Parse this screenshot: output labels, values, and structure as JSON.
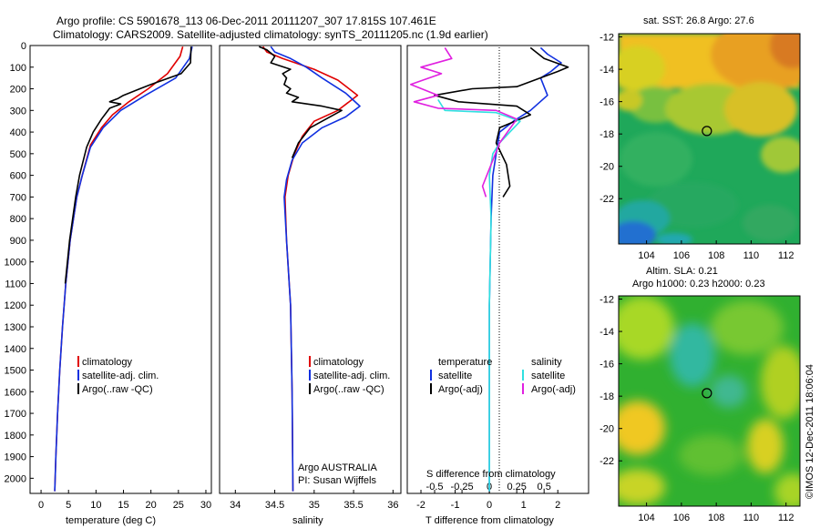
{
  "header": {
    "line1": "Argo profile: CS 5901678_113 06-Dec-2011 20111207_307 17.815S 107.461E",
    "line2": "Climatology: CARS2009. Satellite-adjusted climatology: synTS_20111205.nc (1.9d earlier)"
  },
  "colors": {
    "climatology": "#e00000",
    "satellite": "#1030e0",
    "argo": "#000000",
    "sal_sat": "#30e0e0",
    "sal_argo": "#e020e0"
  },
  "chart_data": [
    {
      "id": "temperature",
      "type": "line",
      "xlabel": "temperature (deg C)",
      "ylabel": "",
      "xlim": [
        -2,
        31
      ],
      "ylim": [
        2070,
        0
      ],
      "xticks": [
        "0",
        "5",
        "10",
        "15",
        "20",
        "25",
        "30"
      ],
      "yticks": [
        "0",
        "100",
        "200",
        "300",
        "400",
        "500",
        "600",
        "700",
        "800",
        "900",
        "1000",
        "1100",
        "1200",
        "1300",
        "1400",
        "1500",
        "1600",
        "1700",
        "1800",
        "1900",
        "2000"
      ],
      "legend": [
        "climatology",
        "satellite-adj. clim.",
        "Argo(..raw -QC)"
      ],
      "series": [
        {
          "name": "climatology",
          "color": "#e00000",
          "points": [
            [
              25.8,
              5
            ],
            [
              25.3,
              50
            ],
            [
              23,
              130
            ],
            [
              19.5,
              200
            ],
            [
              16,
              260
            ],
            [
              13,
              320
            ],
            [
              11,
              380
            ],
            [
              9,
              460
            ],
            [
              7.5,
              600
            ],
            [
              6.5,
              700
            ],
            [
              5.3,
              900
            ],
            [
              4.5,
              1100
            ],
            [
              3.9,
              1300
            ],
            [
              3.4,
              1500
            ],
            [
              3,
              1700
            ],
            [
              2.7,
              1900
            ],
            [
              2.5,
              2060
            ]
          ]
        },
        {
          "name": "satellite-adj. clim.",
          "color": "#1030e0",
          "points": [
            [
              27.5,
              5
            ],
            [
              27,
              60
            ],
            [
              24.5,
              150
            ],
            [
              19,
              230
            ],
            [
              14.5,
              300
            ],
            [
              11.3,
              380
            ],
            [
              9,
              470
            ],
            [
              7.5,
              600
            ],
            [
              6.5,
              700
            ],
            [
              5.3,
              900
            ],
            [
              4.5,
              1100
            ],
            [
              3.9,
              1300
            ],
            [
              3.4,
              1500
            ],
            [
              3,
              1700
            ],
            [
              2.7,
              1900
            ],
            [
              2.5,
              2060
            ]
          ]
        },
        {
          "name": "Argo(..raw -QC)",
          "color": "#000000",
          "points": [
            [
              27.3,
              5
            ],
            [
              27.2,
              80
            ],
            [
              25.5,
              130
            ],
            [
              20,
              180
            ],
            [
              18,
              200
            ],
            [
              15,
              230
            ],
            [
              14,
              245
            ],
            [
              12.5,
              260
            ],
            [
              14.5,
              270
            ],
            [
              12.5,
              290
            ],
            [
              11,
              340
            ],
            [
              9.5,
              400
            ],
            [
              8.3,
              470
            ],
            [
              7,
              600
            ],
            [
              6.3,
              700
            ],
            [
              5.2,
              900
            ],
            [
              4.4,
              1100
            ]
          ]
        }
      ]
    },
    {
      "id": "salinity",
      "type": "line",
      "xlabel": "salinity",
      "ylabel": "",
      "xlim": [
        33.8,
        36.1
      ],
      "ylim": [
        2070,
        0
      ],
      "xticks": [
        "34",
        "34.5",
        "35",
        "35.5",
        "36"
      ],
      "legend": [
        "climatology",
        "satellite-adj. clim.",
        "Argo(..raw -QC)"
      ],
      "annotation": [
        "Argo AUSTRALIA",
        "PI: Susan Wijffels"
      ],
      "series": [
        {
          "name": "climatology",
          "color": "#e00000",
          "points": [
            [
              34.35,
              5
            ],
            [
              34.4,
              30
            ],
            [
              34.6,
              60
            ],
            [
              35,
              110
            ],
            [
              35.3,
              160
            ],
            [
              35.55,
              230
            ],
            [
              35.3,
              300
            ],
            [
              35,
              350
            ],
            [
              34.85,
              420
            ],
            [
              34.75,
              500
            ],
            [
              34.67,
              600
            ],
            [
              34.63,
              700
            ],
            [
              34.65,
              900
            ],
            [
              34.7,
              1200
            ],
            [
              34.72,
              1600
            ],
            [
              34.73,
              2060
            ]
          ]
        },
        {
          "name": "satellite-adj. clim.",
          "color": "#1030e0",
          "points": [
            [
              34.45,
              5
            ],
            [
              34.5,
              30
            ],
            [
              34.7,
              60
            ],
            [
              34.9,
              100
            ],
            [
              35.1,
              150
            ],
            [
              35.4,
              220
            ],
            [
              35.58,
              280
            ],
            [
              35.4,
              330
            ],
            [
              35.1,
              380
            ],
            [
              34.85,
              450
            ],
            [
              34.72,
              530
            ],
            [
              34.65,
              620
            ],
            [
              34.62,
              700
            ],
            [
              34.65,
              900
            ],
            [
              34.7,
              1200
            ],
            [
              34.72,
              1600
            ],
            [
              34.73,
              2060
            ]
          ]
        },
        {
          "name": "Argo(..raw -QC)",
          "color": "#000000",
          "points": [
            [
              34.3,
              5
            ],
            [
              34.4,
              20
            ],
            [
              34.5,
              50
            ],
            [
              34.45,
              80
            ],
            [
              34.7,
              110
            ],
            [
              34.6,
              130
            ],
            [
              34.65,
              150
            ],
            [
              34.62,
              180
            ],
            [
              34.7,
              200
            ],
            [
              34.65,
              220
            ],
            [
              34.8,
              240
            ],
            [
              34.72,
              260
            ],
            [
              35.1,
              280
            ],
            [
              35.35,
              300
            ],
            [
              35.2,
              330
            ],
            [
              34.95,
              380
            ],
            [
              34.8,
              450
            ],
            [
              34.72,
              520
            ]
          ]
        }
      ]
    },
    {
      "id": "differences",
      "type": "line",
      "xlabel": "T difference from climatology",
      "top_label": "S difference from climatology",
      "xlim": [
        -2.4,
        2.9
      ],
      "ylim": [
        2070,
        0
      ],
      "xticks": [
        "-2",
        "-1",
        "0",
        "1",
        "2"
      ],
      "top_ticks": [
        "-0.5",
        "-0.25",
        "0",
        "0.25",
        "0.5"
      ],
      "legend": [
        "temperature",
        "satellite",
        "Argo(-adj)",
        "salinity",
        "satellite",
        "Argo(-adj)"
      ],
      "series": [
        {
          "name": "temperature satellite",
          "color": "#1030e0",
          "points": [
            [
              1.5,
              10
            ],
            [
              1.7,
              40
            ],
            [
              2.1,
              80
            ],
            [
              1.8,
              120
            ],
            [
              1.5,
              150
            ],
            [
              1.7,
              230
            ],
            [
              1.2,
              300
            ],
            [
              0.7,
              350
            ],
            [
              0.3,
              400
            ],
            [
              0.2,
              500
            ],
            [
              0.1,
              600
            ],
            [
              0.05,
              800
            ],
            [
              0,
              1200
            ],
            [
              0,
              1600
            ],
            [
              0,
              2060
            ]
          ]
        },
        {
          "name": "temperature Argo(-adj)",
          "color": "#000000",
          "points": [
            [
              1.2,
              10
            ],
            [
              1.6,
              60
            ],
            [
              2.3,
              100
            ],
            [
              2,
              120
            ],
            [
              0.8,
              190
            ],
            [
              -0.5,
              200
            ],
            [
              -1.6,
              230
            ],
            [
              -0.9,
              260
            ],
            [
              0.8,
              280
            ],
            [
              1.2,
              320
            ],
            [
              0.3,
              380
            ],
            [
              0.2,
              450
            ],
            [
              0.5,
              550
            ],
            [
              0.6,
              650
            ],
            [
              0.4,
              700
            ]
          ]
        },
        {
          "name": "salinity satellite",
          "color": "#30e0e0",
          "points": [
            [
              -1.5,
              250
            ],
            [
              -1.3,
              300
            ],
            [
              0.2,
              310
            ],
            [
              0.9,
              350
            ],
            [
              0.6,
              400
            ],
            [
              0.3,
              450
            ],
            [
              0.1,
              500
            ],
            [
              0,
              600
            ],
            [
              0.05,
              800
            ],
            [
              0,
              1200
            ],
            [
              0,
              1600
            ],
            [
              0,
              2060
            ]
          ]
        },
        {
          "name": "salinity Argo(-adj)",
          "color": "#e020e0",
          "points": [
            [
              -1.3,
              10
            ],
            [
              -1.1,
              60
            ],
            [
              -2,
              100
            ],
            [
              -1.4,
              130
            ],
            [
              -2.3,
              180
            ],
            [
              -1.5,
              230
            ],
            [
              -2.2,
              260
            ],
            [
              -1.5,
              290
            ],
            [
              0.2,
              300
            ],
            [
              0.8,
              340
            ],
            [
              0.3,
              450
            ],
            [
              -0.2,
              650
            ],
            [
              -0.1,
              700
            ]
          ]
        }
      ]
    },
    {
      "id": "sst-map",
      "type": "heatmap",
      "title": "sat. SST: 26.8  Argo: 27.6",
      "xticks": [
        "104",
        "106",
        "108",
        "110",
        "112"
      ],
      "yticks": [
        "-12",
        "-14",
        "-16",
        "-18",
        "-20",
        "-22"
      ],
      "xlim": [
        102.4,
        112.8
      ],
      "ylim": [
        -24.8,
        -11.8
      ],
      "marker": {
        "lon": 107.461,
        "lat": -17.815
      }
    },
    {
      "id": "sla-map",
      "type": "heatmap",
      "title": "Altim. SLA: 0.21",
      "subtitle": "Argo h1000: 0.23 h2000: 0.23",
      "xticks": [
        "104",
        "106",
        "108",
        "110",
        "112"
      ],
      "yticks": [
        "-12",
        "-14",
        "-16",
        "-18",
        "-20",
        "-22"
      ],
      "xlim": [
        102.4,
        112.8
      ],
      "ylim": [
        -24.8,
        -11.8
      ],
      "marker": {
        "lon": 107.461,
        "lat": -17.815
      }
    }
  ],
  "credit": "©IMOS 12-Dec-2011 18:06:04"
}
